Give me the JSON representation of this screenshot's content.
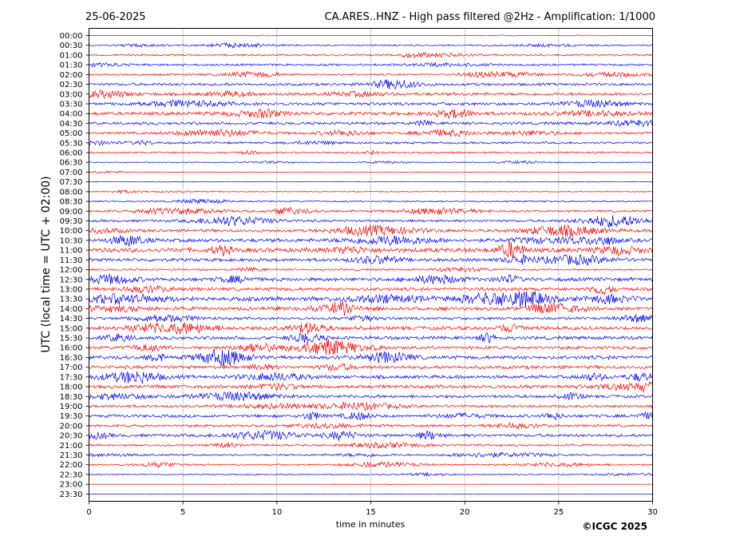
{
  "header": {
    "date": "25-06-2025",
    "title": "CA.ARES..HNZ - High pass filtered @2Hz - Amplification: 1/1000"
  },
  "footer": {
    "copyright": "©ICGC 2025"
  },
  "colors": {
    "even_row": "#ff0000",
    "odd_row": "#0000ff",
    "grid": "#000000"
  },
  "chart_data": {
    "type": "line",
    "title": "CA.ARES..HNZ - High pass filtered @2Hz - Amplification: 1/1000",
    "xlabel": "time in minutes",
    "ylabel": "UTC (local time = UTC + 02:00)",
    "xlim": [
      0,
      30
    ],
    "x_ticks": [
      0,
      5,
      10,
      15,
      20,
      25,
      30
    ],
    "grid": "vertical-dotted",
    "rows": [
      "00:00",
      "00:30",
      "01:00",
      "01:30",
      "02:00",
      "02:30",
      "03:00",
      "03:30",
      "04:00",
      "04:30",
      "05:00",
      "05:30",
      "06:00",
      "06:30",
      "07:00",
      "07:30",
      "08:00",
      "08:30",
      "09:00",
      "09:30",
      "10:00",
      "10:30",
      "11:00",
      "11:30",
      "12:00",
      "12:30",
      "13:00",
      "13:30",
      "14:00",
      "14:30",
      "15:00",
      "15:30",
      "16:00",
      "16:30",
      "17:00",
      "17:30",
      "18:00",
      "18:30",
      "19:00",
      "19:30",
      "20:00",
      "20:30",
      "21:00",
      "21:30",
      "22:00",
      "22:30",
      "23:00",
      "23:30"
    ],
    "amplitude_relative": [
      0.05,
      0.25,
      0.3,
      0.35,
      0.3,
      0.45,
      0.5,
      0.5,
      0.55,
      0.45,
      0.4,
      0.35,
      0.3,
      0.15,
      0.08,
      0.05,
      0.15,
      0.25,
      0.35,
      0.4,
      0.5,
      0.6,
      0.75,
      0.55,
      0.3,
      0.6,
      0.55,
      0.7,
      0.6,
      0.45,
      0.6,
      0.55,
      0.5,
      0.6,
      0.55,
      0.55,
      0.6,
      0.5,
      0.45,
      0.5,
      0.4,
      0.5,
      0.35,
      0.3,
      0.25,
      0.2,
      0.03,
      0.02
    ]
  }
}
